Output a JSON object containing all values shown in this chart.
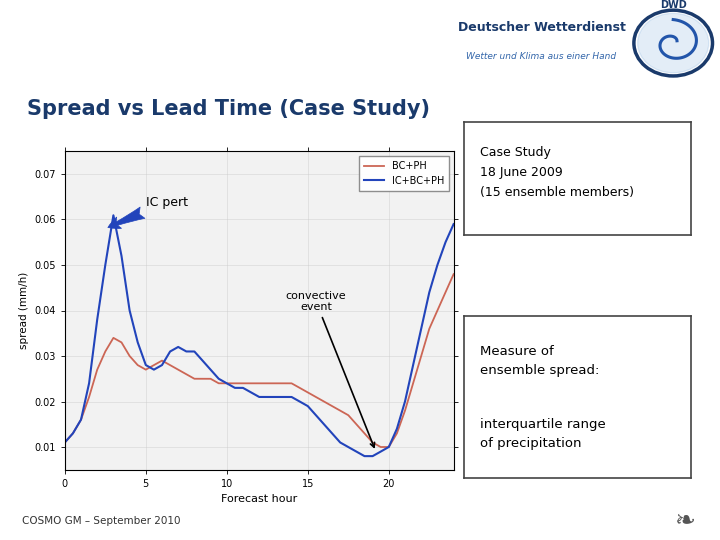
{
  "title": "Spread vs Lead Time (Case Study)",
  "title_color": "#1a3a6b",
  "title_fontsize": 15,
  "background_color": "#ffffff",
  "panel_bg": "#b8c4d8",
  "footer_text": "COSMO GM – September 2010",
  "xlabel": "Forecast hour",
  "ylabel": "spread (mm/h)",
  "xlim": [
    0,
    24
  ],
  "ylim": [
    0.005,
    0.075
  ],
  "ytick_labels": [
    "0.01",
    "0.02",
    "0.03",
    "0.04",
    "0.05",
    "0.06",
    "0.07"
  ],
  "ytick_vals": [
    0.01,
    0.02,
    0.03,
    0.04,
    0.05,
    0.06,
    0.07
  ],
  "xtick_vals": [
    0,
    5,
    10,
    15,
    20
  ],
  "red_x": [
    0,
    0.5,
    1,
    1.5,
    2,
    2.5,
    3,
    3.5,
    4,
    4.5,
    5,
    5.5,
    6,
    6.5,
    7,
    7.5,
    8,
    8.5,
    9,
    9.5,
    10,
    10.5,
    11,
    11.5,
    12,
    12.5,
    13,
    13.5,
    14,
    14.5,
    15,
    15.5,
    16,
    16.5,
    17,
    17.5,
    18,
    18.5,
    19,
    19.5,
    20,
    20.5,
    21,
    21.5,
    22,
    22.5,
    23,
    23.5,
    24
  ],
  "red_y": [
    0.011,
    0.013,
    0.016,
    0.021,
    0.027,
    0.031,
    0.034,
    0.033,
    0.03,
    0.028,
    0.027,
    0.028,
    0.029,
    0.028,
    0.027,
    0.026,
    0.025,
    0.025,
    0.025,
    0.024,
    0.024,
    0.024,
    0.024,
    0.024,
    0.024,
    0.024,
    0.024,
    0.024,
    0.024,
    0.023,
    0.022,
    0.021,
    0.02,
    0.019,
    0.018,
    0.017,
    0.015,
    0.013,
    0.011,
    0.01,
    0.01,
    0.013,
    0.018,
    0.024,
    0.03,
    0.036,
    0.04,
    0.044,
    0.048
  ],
  "blue_x": [
    0,
    0.5,
    1,
    1.5,
    2,
    2.5,
    3,
    3.5,
    4,
    4.5,
    5,
    5.5,
    6,
    6.5,
    7,
    7.5,
    8,
    8.5,
    9,
    9.5,
    10,
    10.5,
    11,
    11.5,
    12,
    12.5,
    13,
    13.5,
    14,
    14.5,
    15,
    15.5,
    16,
    16.5,
    17,
    17.5,
    18,
    18.5,
    19,
    19.5,
    20,
    20.5,
    21,
    21.5,
    22,
    22.5,
    23,
    23.5,
    24
  ],
  "blue_y": [
    0.011,
    0.013,
    0.016,
    0.024,
    0.038,
    0.05,
    0.061,
    0.052,
    0.04,
    0.033,
    0.028,
    0.027,
    0.028,
    0.031,
    0.032,
    0.031,
    0.031,
    0.029,
    0.027,
    0.025,
    0.024,
    0.023,
    0.023,
    0.022,
    0.021,
    0.021,
    0.021,
    0.021,
    0.021,
    0.02,
    0.019,
    0.017,
    0.015,
    0.013,
    0.011,
    0.01,
    0.009,
    0.008,
    0.008,
    0.009,
    0.01,
    0.014,
    0.02,
    0.028,
    0.036,
    0.044,
    0.05,
    0.055,
    0.059
  ],
  "red_label": "BC+PH",
  "blue_label": "IC+BC+PH",
  "red_color": "#cc6655",
  "blue_color": "#2244bb",
  "case_study_text": "Case Study\n18 June 2009\n(15 ensemble members)",
  "measure_text1": "Measure of\nensemble spread:",
  "measure_text2": "interquartile range\nof precipitation",
  "dwd_main": "Deutscher Wetterdienst",
  "dwd_sub": "Wetter und Klima aus einer Hand",
  "dwd_abbr": "DWD",
  "header_line_color": "#1a3a6b",
  "footer_line_color": "#1a3a6b"
}
